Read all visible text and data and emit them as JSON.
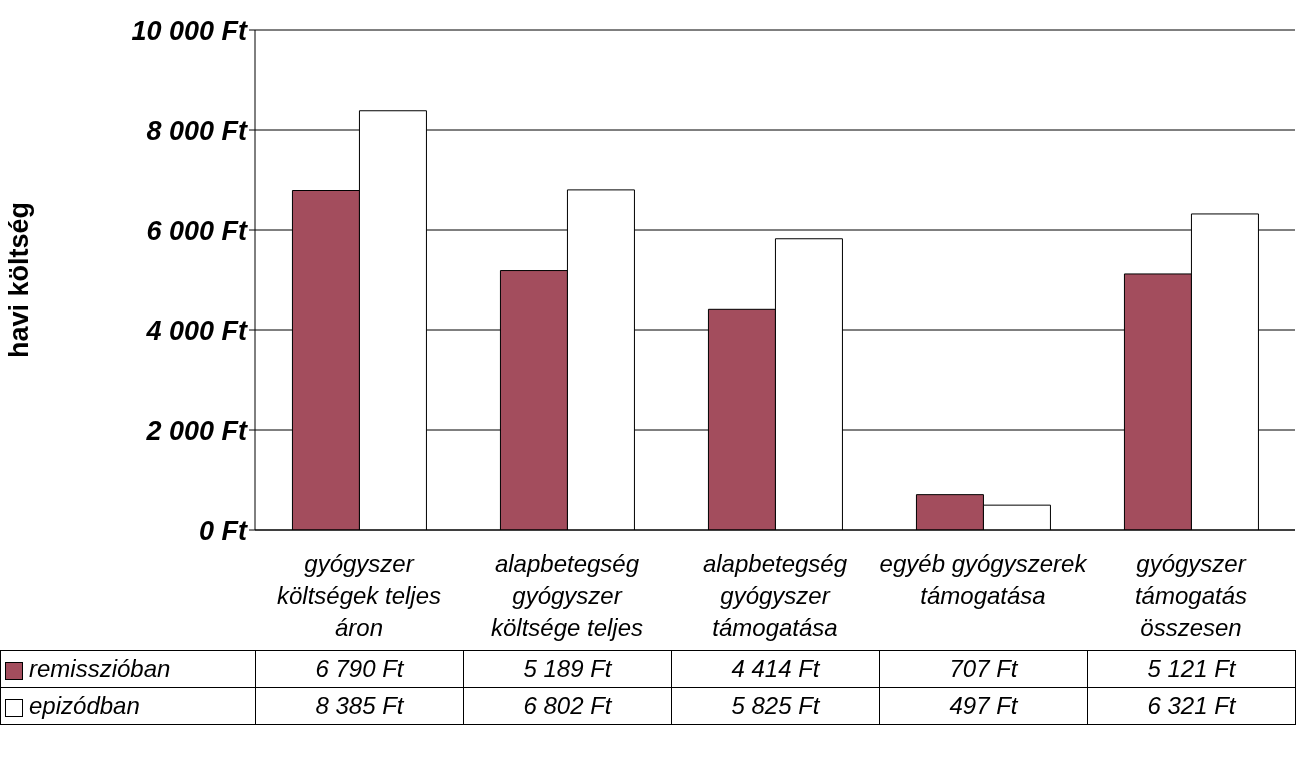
{
  "chart_data": {
    "type": "bar",
    "ylabel": "havi költség",
    "categories": [
      "gyógyszer költségek teljes áron",
      "alapbetegség gyógyszer költsége teljes",
      "alapbetegség gyógyszer támogatása",
      "egyéb gyógyszerek támogatása",
      "gyógyszer támogatás összesen"
    ],
    "series": [
      {
        "name": "remisszióban",
        "color": "#a34d5d",
        "values": [
          6790,
          5189,
          4414,
          707,
          5121
        ],
        "value_labels": [
          "6 790 Ft",
          "5 189 Ft",
          "4 414 Ft",
          "707 Ft",
          "5 121 Ft"
        ]
      },
      {
        "name": "epizódban",
        "color": "#ffffff",
        "values": [
          8385,
          6802,
          5825,
          497,
          6321
        ],
        "value_labels": [
          "8 385 Ft",
          "6 802 Ft",
          "5 825 Ft",
          "497 Ft",
          "6 321 Ft"
        ]
      }
    ],
    "ylim": [
      0,
      10000
    ],
    "yticks": [
      {
        "value": 0,
        "label": "0 Ft"
      },
      {
        "value": 2000,
        "label": "2 000 Ft"
      },
      {
        "value": 4000,
        "label": "4 000 Ft"
      },
      {
        "value": 6000,
        "label": "6 000 Ft"
      },
      {
        "value": 8000,
        "label": "8 000 Ft"
      },
      {
        "value": 10000,
        "label": "10 000 Ft"
      }
    ],
    "grid": "y",
    "legend": "bottom"
  }
}
